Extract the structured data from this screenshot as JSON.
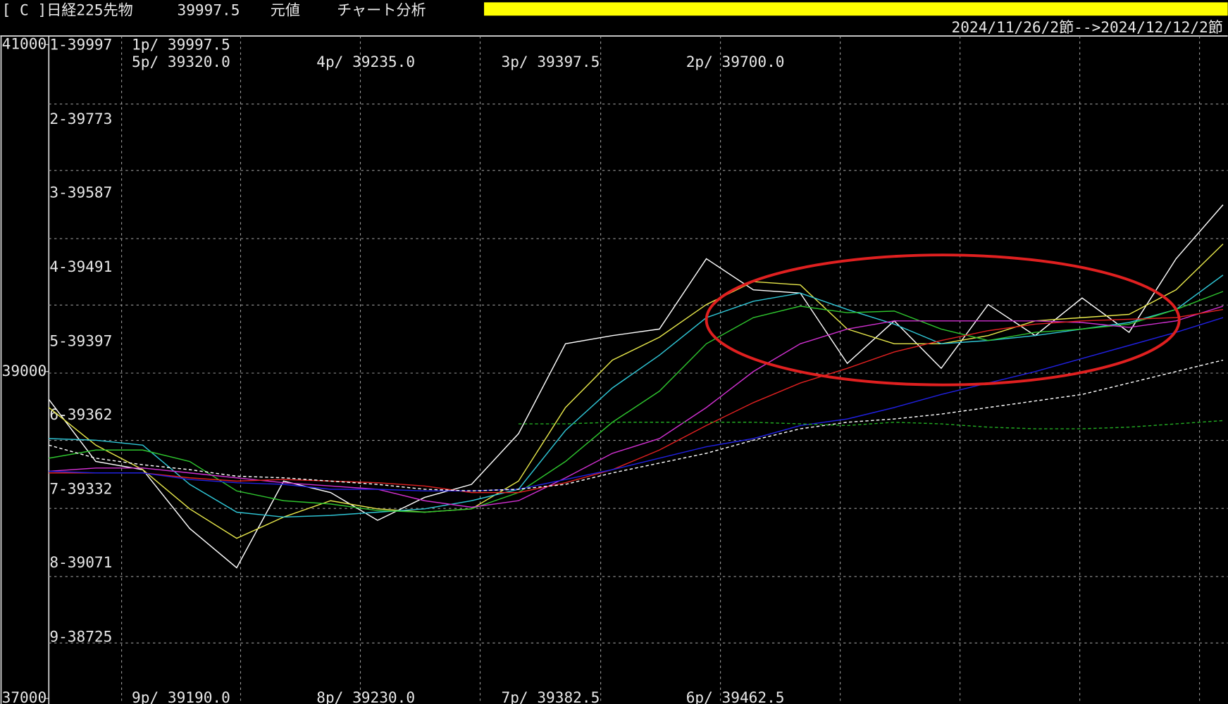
{
  "header": {
    "symbol": "[ C ]日経225先物",
    "price": "39997.5",
    "basis": "元値",
    "mode": "チャート分析",
    "range": "2024/11/26/2節-->2024/12/12/2節"
  },
  "levels": [
    "1-39997",
    "2-39773",
    "3-39587",
    "4-39491",
    "5-39397",
    "6-39362",
    "7-39332",
    "8-39071",
    "9-38725"
  ],
  "periods_top": [
    "1p/ 39997.5",
    "5p/ 39320.0",
    "4p/ 39235.0",
    "3p/ 39397.5",
    "2p/ 39700.0"
  ],
  "periods_bottom": [
    "9p/ 39190.0",
    "8p/ 39230.0",
    "7p/ 39382.5",
    "6p/ 39462.5"
  ],
  "chart_data": {
    "type": "line",
    "categories": [
      null,
      null,
      null,
      null,
      null,
      null,
      null,
      null,
      null,
      null,
      null,
      null,
      null,
      null,
      null,
      null,
      null,
      null,
      null,
      null,
      null,
      null,
      null,
      null,
      null,
      null
    ],
    "ylim": [
      37000,
      41000
    ],
    "yticks": [
      41000,
      39000,
      37000
    ],
    "series": [
      {
        "color": "#ffffff",
        "style": "solid",
        "values": [
          38830,
          38450,
          38400,
          38040,
          37800,
          38330,
          38260,
          38090,
          38230,
          38310,
          38620,
          39170,
          39220,
          39260,
          39690,
          39500,
          39480,
          39050,
          39310,
          39020,
          39410,
          39220,
          39450,
          39240,
          39690,
          40020
        ]
      },
      {
        "color": "#e6e64a",
        "style": "solid",
        "values": [
          38780,
          38550,
          38400,
          38160,
          37980,
          38110,
          38210,
          38160,
          38140,
          38160,
          38330,
          38780,
          39070,
          39210,
          39410,
          39550,
          39530,
          39260,
          39170,
          39170,
          39220,
          39310,
          39330,
          39350,
          39500,
          39780
        ]
      },
      {
        "color": "#2fc6d6",
        "style": "solid",
        "values": [
          38590,
          38580,
          38550,
          38310,
          38140,
          38110,
          38120,
          38140,
          38160,
          38210,
          38280,
          38640,
          38900,
          39100,
          39330,
          39430,
          39480,
          39380,
          39290,
          39170,
          39190,
          39220,
          39260,
          39300,
          39380,
          39590
        ]
      },
      {
        "color": "#2ec42e",
        "style": "solid",
        "values": [
          38470,
          38520,
          38520,
          38450,
          38270,
          38210,
          38190,
          38150,
          38140,
          38160,
          38260,
          38450,
          38690,
          38880,
          39170,
          39330,
          39400,
          39360,
          39370,
          39260,
          39190,
          39240,
          39260,
          39290,
          39380,
          39490
        ]
      },
      {
        "color": "#d030d0",
        "style": "solid",
        "values": [
          38390,
          38410,
          38410,
          38380,
          38350,
          38320,
          38300,
          38280,
          38210,
          38170,
          38210,
          38350,
          38500,
          38590,
          38780,
          39000,
          39170,
          39260,
          39310,
          39310,
          39310,
          39310,
          39300,
          39270,
          39310,
          39400
        ]
      },
      {
        "color": "#e02020",
        "style": "solid",
        "values": [
          38380,
          38380,
          38380,
          38350,
          38330,
          38340,
          38330,
          38320,
          38300,
          38260,
          38260,
          38320,
          38400,
          38520,
          38670,
          38810,
          38930,
          39020,
          39120,
          39190,
          39250,
          39290,
          39310,
          39320,
          39330,
          39380
        ]
      },
      {
        "color": "#2020e0",
        "style": "solid",
        "values": [
          38390,
          38380,
          38380,
          38340,
          38320,
          38310,
          38280,
          38280,
          38270,
          38270,
          38280,
          38340,
          38400,
          38470,
          38540,
          38590,
          38670,
          38710,
          38780,
          38860,
          38930,
          39000,
          39080,
          39160,
          39240,
          39330
        ]
      },
      {
        "color": "#ffffff",
        "style": "dashed",
        "values": [
          38550,
          38470,
          38430,
          38400,
          38360,
          38350,
          38330,
          38310,
          38280,
          38270,
          38280,
          38310,
          38380,
          38440,
          38500,
          38580,
          38650,
          38690,
          38710,
          38740,
          38780,
          38820,
          38860,
          38930,
          39000,
          39070
        ]
      },
      {
        "color": "#22aa22",
        "style": "dashed",
        "values": [
          null,
          null,
          null,
          null,
          null,
          null,
          null,
          null,
          null,
          null,
          38680,
          38680,
          38690,
          38690,
          38690,
          38690,
          38680,
          38670,
          38690,
          38680,
          38660,
          38650,
          38650,
          38660,
          38680,
          38700
        ]
      }
    ]
  }
}
